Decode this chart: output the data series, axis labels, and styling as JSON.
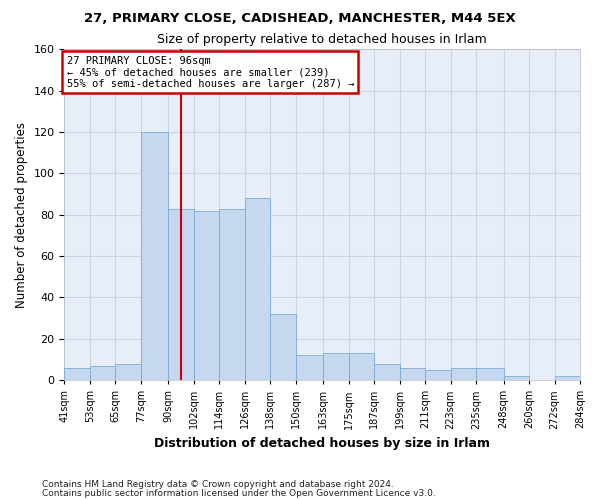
{
  "title": "27, PRIMARY CLOSE, CADISHEAD, MANCHESTER, M44 5EX",
  "subtitle": "Size of property relative to detached houses in Irlam",
  "xlabel": "Distribution of detached houses by size in Irlam",
  "ylabel": "Number of detached properties",
  "footnote1": "Contains HM Land Registry data © Crown copyright and database right 2024.",
  "footnote2": "Contains public sector information licensed under the Open Government Licence v3.0.",
  "annotation_line1": "27 PRIMARY CLOSE: 96sqm",
  "annotation_line2": "← 45% of detached houses are smaller (239)",
  "annotation_line3": "55% of semi-detached houses are larger (287) →",
  "property_size": 96,
  "bin_edges": [
    41,
    53,
    65,
    77,
    90,
    102,
    114,
    126,
    138,
    150,
    163,
    175,
    187,
    199,
    211,
    223,
    235,
    248,
    260,
    272,
    284
  ],
  "bar_heights": [
    6,
    7,
    8,
    120,
    83,
    82,
    83,
    88,
    32,
    12,
    13,
    13,
    8,
    6,
    5,
    6,
    6,
    2,
    0,
    2
  ],
  "bar_color": "#c5d8f0",
  "bar_edge_color": "#7aadd4",
  "vline_color": "#cc0000",
  "box_edge_color": "#cc0000",
  "grid_color": "#c8d4e8",
  "background_color": "#e8eef8",
  "ylim": [
    0,
    160
  ],
  "yticks": [
    0,
    20,
    40,
    60,
    80,
    100,
    120,
    140,
    160
  ]
}
